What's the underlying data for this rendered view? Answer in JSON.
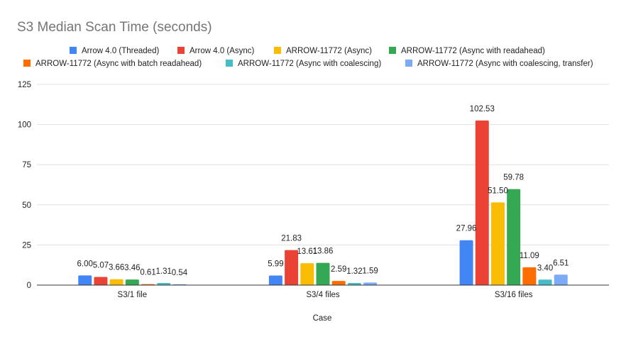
{
  "chart_data": {
    "type": "bar",
    "title": "S3 Median Scan Time (seconds)",
    "xlabel": "Case",
    "ylabel": "",
    "ylim": [
      0,
      125
    ],
    "yticks": [
      0,
      25,
      50,
      75,
      100,
      125
    ],
    "grid": true,
    "legend_position": "top",
    "categories": [
      "S3/1 file",
      "S3/4 files",
      "S3/16 files"
    ],
    "series": [
      {
        "name": "Arrow 4.0 (Threaded)",
        "color": "#4285f4",
        "values": [
          6.0,
          5.99,
          27.96
        ],
        "labels": [
          "6.00",
          "5.99",
          "27.96"
        ]
      },
      {
        "name": "Arrow 4.0 (Async)",
        "color": "#ea4335",
        "values": [
          5.07,
          21.83,
          102.53
        ],
        "labels": [
          "5.07",
          "21.83",
          "102.53"
        ]
      },
      {
        "name": "ARROW-11772 (Async)",
        "color": "#fbbc04",
        "values": [
          3.66,
          13.61,
          51.5
        ],
        "labels": [
          "3.66",
          "13.61",
          "51.50"
        ]
      },
      {
        "name": "ARROW-11772 (Async with readahead)",
        "color": "#34a853",
        "values": [
          3.46,
          13.86,
          59.78
        ],
        "labels": [
          "3.46",
          "13.86",
          "59.78"
        ]
      },
      {
        "name": "ARROW-11772 (Async with batch readahead)",
        "color": "#ff6d01",
        "values": [
          0.61,
          2.59,
          11.09
        ],
        "labels": [
          "0.61",
          "2.59",
          "11.09"
        ]
      },
      {
        "name": "ARROW-11772 (Async with coalescing)",
        "color": "#46bdc6",
        "values": [
          1.31,
          1.32,
          3.4
        ],
        "labels": [
          "1.31",
          "1.32",
          "3.40"
        ]
      },
      {
        "name": "ARROW-11772 (Async with coalescing, transfer)",
        "color": "#7baaf7",
        "values": [
          0.54,
          1.59,
          6.51
        ],
        "labels": [
          "0.54",
          "1.59",
          "6.51"
        ]
      }
    ]
  }
}
